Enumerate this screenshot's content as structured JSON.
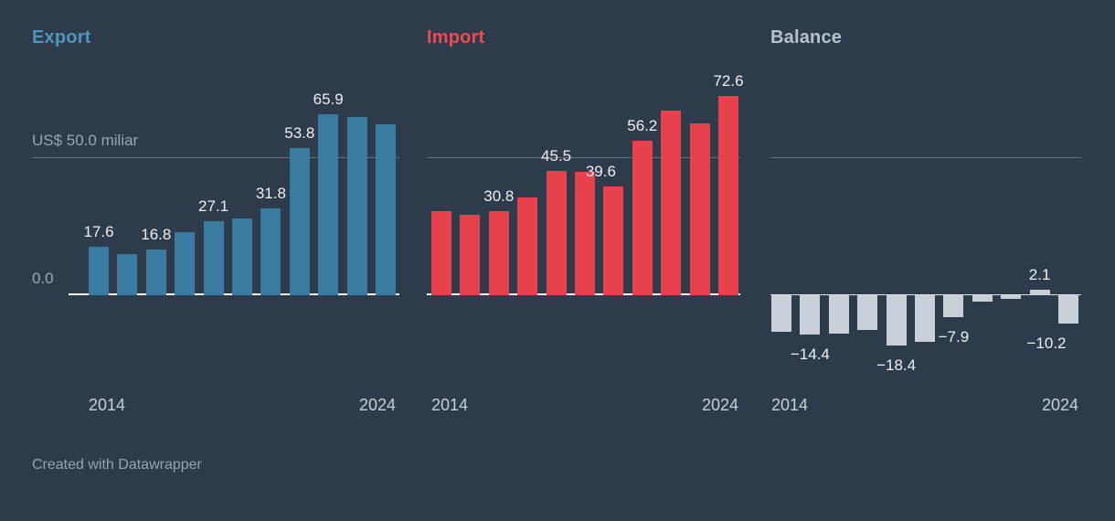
{
  "chart_data": [
    {
      "type": "bar",
      "series": "Export",
      "title": "Export",
      "x": [
        2014,
        2015,
        2016,
        2017,
        2018,
        2019,
        2020,
        2021,
        2022,
        2023,
        2024
      ],
      "values": [
        17.6,
        15.0,
        16.8,
        23.0,
        27.1,
        27.9,
        31.8,
        53.8,
        65.9,
        64.9,
        62.4
      ],
      "value_labels": [
        {
          "i": 0,
          "text": "17.6"
        },
        {
          "i": 2,
          "text": "16.8"
        },
        {
          "i": 4,
          "text": "27.1"
        },
        {
          "i": 6,
          "text": "31.8"
        },
        {
          "i": 7,
          "text": "53.8"
        },
        {
          "i": 8,
          "text": "65.9"
        }
      ],
      "x_ticks": [
        "2014",
        "2024"
      ],
      "y_axis_labels": [
        "US$ 50.0 miliar",
        "0.0"
      ],
      "y_gridline_value": 50,
      "ylim": [
        0,
        75
      ],
      "bar_color": "#3a7ba2",
      "title_color": "#4f95bd"
    },
    {
      "type": "bar",
      "series": "Import",
      "title": "Import",
      "x": [
        2014,
        2015,
        2016,
        2017,
        2018,
        2019,
        2020,
        2021,
        2022,
        2023,
        2024
      ],
      "values": [
        30.8,
        29.4,
        30.8,
        35.7,
        45.5,
        44.9,
        39.6,
        56.2,
        67.2,
        62.8,
        72.6
      ],
      "value_labels": [
        {
          "i": 2,
          "text": "30.8"
        },
        {
          "i": 4,
          "text": "45.5"
        },
        {
          "i": 6,
          "text": "39.6",
          "dx": -14
        },
        {
          "i": 7,
          "text": "56.2"
        },
        {
          "i": 10,
          "text": "72.6"
        }
      ],
      "x_ticks": [
        "2014",
        "2024"
      ],
      "y_gridline_value": 50,
      "ylim": [
        0,
        75
      ],
      "bar_color": "#e8414e",
      "title_color": "#ef4a55"
    },
    {
      "type": "bar",
      "series": "Balance",
      "title": "Balance",
      "x": [
        2014,
        2015,
        2016,
        2017,
        2018,
        2019,
        2020,
        2021,
        2022,
        2023,
        2024
      ],
      "values": [
        -13.2,
        -14.4,
        -14.0,
        -12.7,
        -18.4,
        -17.0,
        -7.9,
        -2.4,
        -1.3,
        2.1,
        -10.2
      ],
      "value_labels": [
        {
          "i": 1,
          "text": "−14.4"
        },
        {
          "i": 4,
          "text": "−18.4"
        },
        {
          "i": 6,
          "text": "−7.9"
        },
        {
          "i": 9,
          "text": "2.1"
        },
        {
          "i": 10,
          "text": "−10.2",
          "dx": -24
        }
      ],
      "x_ticks": [
        "2014",
        "2024"
      ],
      "y_gridline_value": 50,
      "ylim": [
        -25,
        75
      ],
      "bar_color": "#c9d1d8",
      "title_color": "#b8c2cb"
    }
  ],
  "footer": {
    "credit": "Created with Datawrapper"
  },
  "colors": {
    "background": "#2d3b4b",
    "gridline": "rgba(255,255,255,0.28)",
    "value_label": "#edf0f3",
    "tick_label": "#c7cfd7",
    "axis_label": "#9aa6b1"
  }
}
